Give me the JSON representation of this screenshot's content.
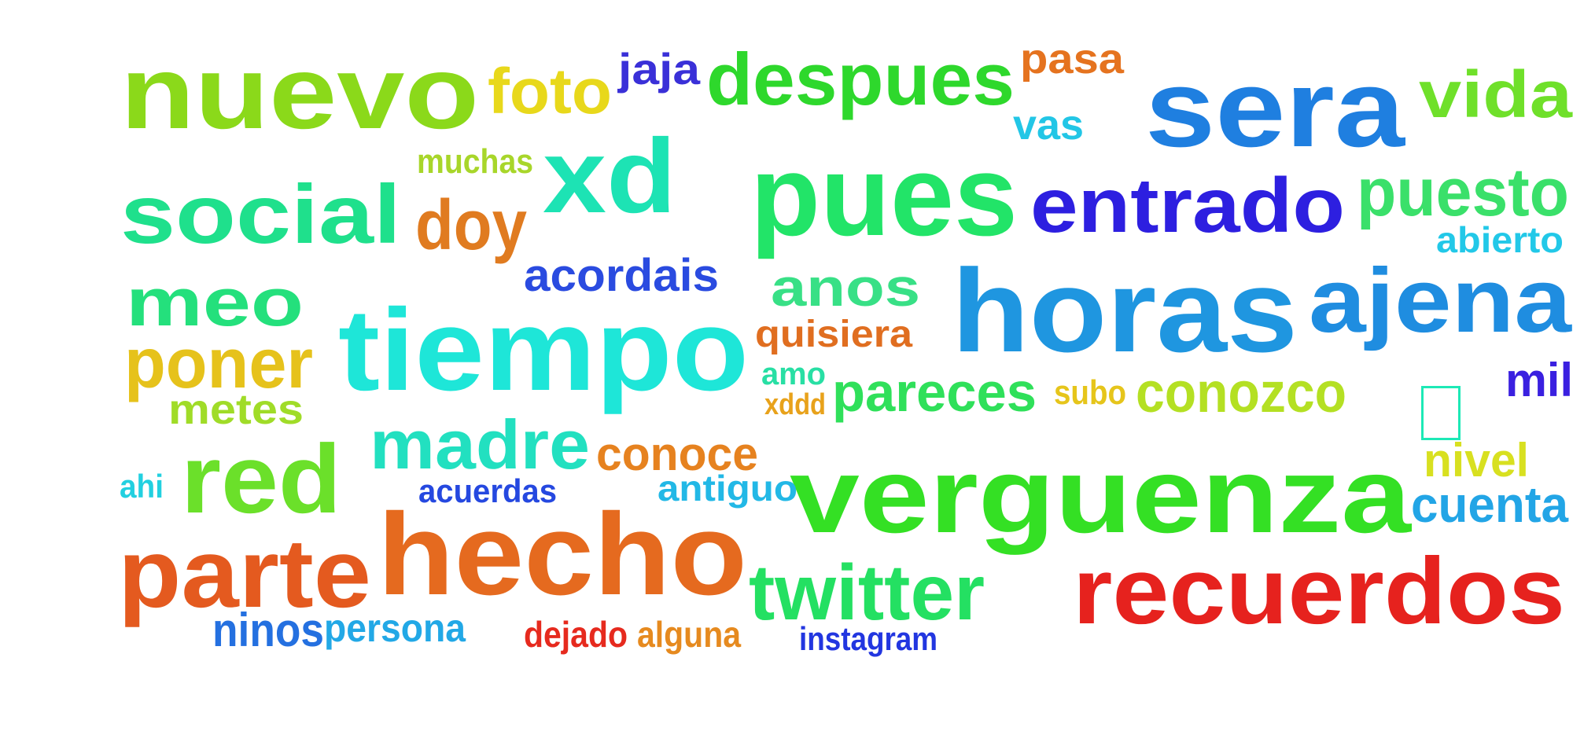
{
  "words": [
    {
      "text": "nuevo",
      "color": "#8bd91a"
    },
    {
      "text": "foto",
      "color": "#e8d81b"
    },
    {
      "text": "jaja",
      "color": "#3a30d8"
    },
    {
      "text": "despues",
      "color": "#2ed82c"
    },
    {
      "text": "pasa",
      "color": "#e5731f"
    },
    {
      "text": "sera",
      "color": "#1f7fe0"
    },
    {
      "text": "vida",
      "color": "#6fe02a"
    },
    {
      "text": "vas",
      "color": "#22c6e6"
    },
    {
      "text": "muchas",
      "color": "#a8d62a"
    },
    {
      "text": "xd",
      "color": "#1de3b4"
    },
    {
      "text": "pues",
      "color": "#22e468"
    },
    {
      "text": "social",
      "color": "#1fe08c"
    },
    {
      "text": "doy",
      "color": "#e07b20"
    },
    {
      "text": "entrado",
      "color": "#2d1fe0"
    },
    {
      "text": "puesto",
      "color": "#3ae06a"
    },
    {
      "text": "abierto",
      "color": "#22c8e8"
    },
    {
      "text": "acordais",
      "color": "#2a4be0"
    },
    {
      "text": "meo",
      "color": "#24e07c"
    },
    {
      "text": "anos",
      "color": "#38e086"
    },
    {
      "text": "horas",
      "color": "#1f96e0"
    },
    {
      "text": "ajena",
      "color": "#1f8de0"
    },
    {
      "text": "tiempo",
      "color": "#1ee6d8"
    },
    {
      "text": "quisiera",
      "color": "#e06e20"
    },
    {
      "text": "poner",
      "color": "#e6c21b"
    },
    {
      "text": "amo",
      "color": "#28dfa4"
    },
    {
      "text": "xddd",
      "color": "#e8a21b"
    },
    {
      "text": "pareces",
      "color": "#2fe05a"
    },
    {
      "text": "subo",
      "color": "#e6c51b"
    },
    {
      "text": "conozco",
      "color": "#b4e023"
    },
    {
      "text": "mil",
      "color": "#3a20e0"
    },
    {
      "text": "metes",
      "color": "#a0dc28"
    },
    {
      "text": "madre",
      "color": "#22e0c0"
    },
    {
      "text": "conoce",
      "color": "#e6821f"
    },
    {
      "text": "red",
      "color": "#6be02a"
    },
    {
      "text": "verguenza",
      "color": "#34e024"
    },
    {
      "text": "nivel",
      "color": "#d8e020"
    },
    {
      "text": "ahi",
      "color": "#22d0e0"
    },
    {
      "text": "acuerdas",
      "color": "#2548e0"
    },
    {
      "text": "antiguo",
      "color": "#22b8e6"
    },
    {
      "text": "cuenta",
      "color": "#22a5e6"
    },
    {
      "text": "parte",
      "color": "#e45a1f"
    },
    {
      "text": "hecho",
      "color": "#e56a1f"
    },
    {
      "text": "twitter",
      "color": "#24e062"
    },
    {
      "text": "recuerdos",
      "color": "#e6221e"
    },
    {
      "text": "ninos",
      "color": "#2470e0"
    },
    {
      "text": "persona",
      "color": "#22a8e6"
    },
    {
      "text": "dejado",
      "color": "#e62a1e"
    },
    {
      "text": "alguna",
      "color": "#e68a1f"
    },
    {
      "text": "instagram",
      "color": "#2236e0"
    }
  ]
}
